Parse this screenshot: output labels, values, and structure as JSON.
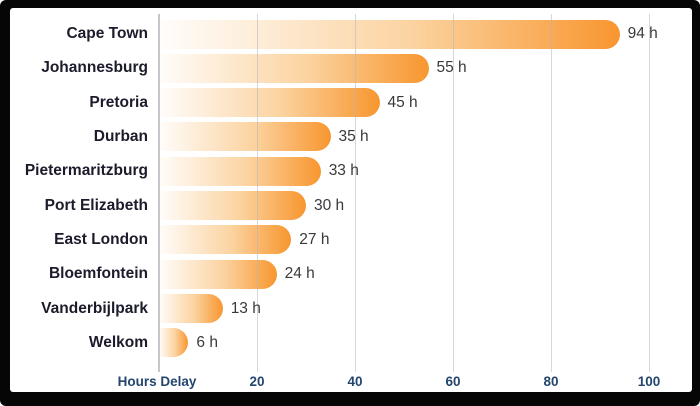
{
  "frame": {
    "border_color": "#060606",
    "panel_background": "#FFFFFF"
  },
  "chart_data": {
    "type": "bar",
    "orientation": "horizontal",
    "title": "",
    "xlabel": "Hours Delay",
    "ylabel": "",
    "categories": [
      "Cape Town",
      "Johannesburg",
      "Pretoria",
      "Durban",
      "Pietermaritzburg",
      "Port Elizabeth",
      "East London",
      "Bloemfontein",
      "Vanderbijlpark",
      "Welkom"
    ],
    "values": [
      94,
      55,
      45,
      35,
      33,
      30,
      27,
      24,
      13,
      6
    ],
    "value_labels": [
      "94 h",
      "55 h",
      "45 h",
      "35 h",
      "33 h",
      "30 h",
      "27 h",
      "24 h",
      "13 h",
      "6 h"
    ],
    "x_ticks": [
      20,
      40,
      60,
      80,
      100
    ],
    "xlim": [
      0,
      108
    ],
    "grid": "vertical-only",
    "legend": "none",
    "colors": {
      "bar_gradient_start": "#FFFDFB",
      "bar_gradient_mid": "#FBD3A0",
      "bar_gradient_end": "#F8962F",
      "category_label": "#1B1B2B",
      "value_label": "#3A3A3A",
      "axis_label": "#24466E",
      "gridline": "#B0B6BD8C",
      "axis_line": "#C4C8CD"
    }
  }
}
